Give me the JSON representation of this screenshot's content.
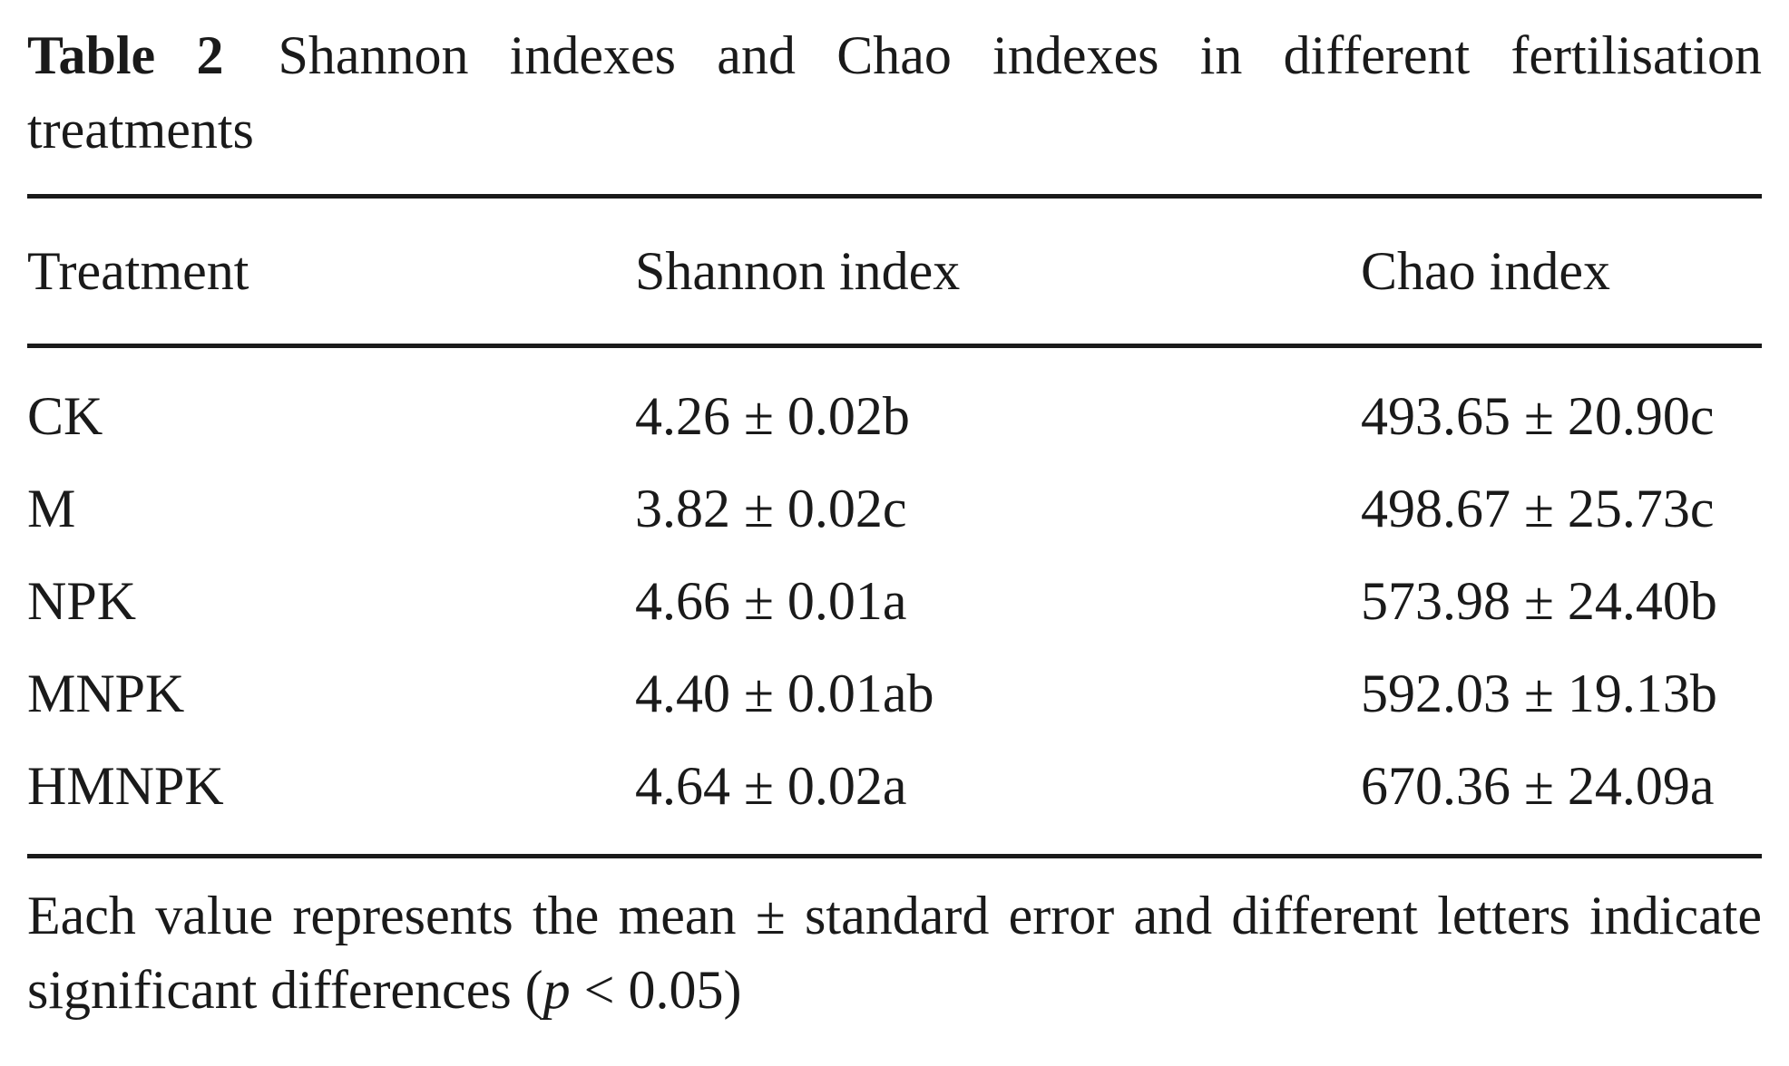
{
  "caption": {
    "label": "Table 2",
    "text": "Shannon indexes and Chao indexes in different fertilisation treatments"
  },
  "table": {
    "headers": [
      "Treatment",
      "Shannon index",
      "Chao index"
    ],
    "rows": [
      [
        "CK",
        "4.26 ± 0.02b",
        "493.65 ± 20.90c"
      ],
      [
        "M",
        "3.82 ± 0.02c",
        "498.67 ± 25.73c"
      ],
      [
        "NPK",
        "4.66 ± 0.01a",
        "573.98 ± 24.40b"
      ],
      [
        "MNPK",
        "4.40 ± 0.01ab",
        "592.03 ± 19.13b"
      ],
      [
        "HMNPK",
        "4.64 ± 0.02a",
        "670.36 ± 24.09a"
      ]
    ]
  },
  "note": {
    "text_before": "Each value represents the mean ± standard error and different letters indicate significant differences (",
    "italic": "p",
    "text_after": " < 0.05)"
  }
}
